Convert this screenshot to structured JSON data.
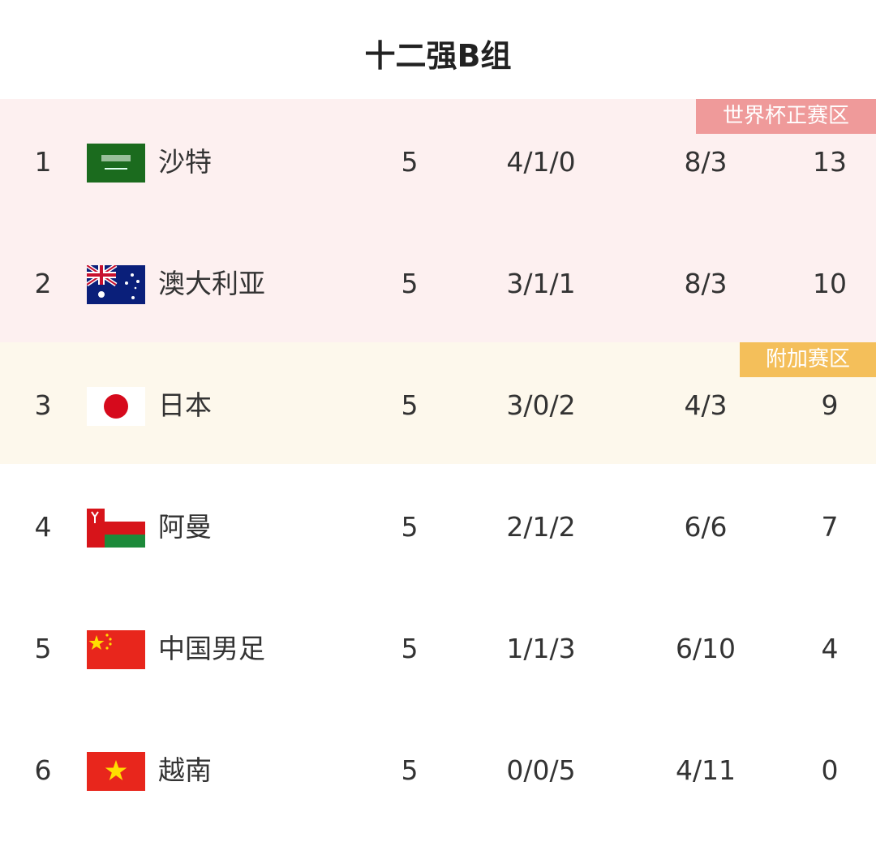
{
  "title": "十二强B组",
  "zones": [
    {
      "label": "世界杯正赛区",
      "badge_color": "#ef9a9a",
      "bg_color": "#fdf0f0"
    },
    {
      "label": "附加赛区",
      "badge_color": "#f4bf5a",
      "bg_color": "#fdf8ec"
    }
  ],
  "rows": [
    {
      "rank": "1",
      "team": "沙特",
      "flag": "saudi-arabia-flag",
      "played": "5",
      "wdl": "4/1/0",
      "goals": "8/3",
      "points": "13"
    },
    {
      "rank": "2",
      "team": "澳大利亚",
      "flag": "australia-flag",
      "played": "5",
      "wdl": "3/1/1",
      "goals": "8/3",
      "points": "10"
    },
    {
      "rank": "3",
      "team": "日本",
      "flag": "japan-flag",
      "played": "5",
      "wdl": "3/0/2",
      "goals": "4/3",
      "points": "9"
    },
    {
      "rank": "4",
      "team": "阿曼",
      "flag": "oman-flag",
      "played": "5",
      "wdl": "2/1/2",
      "goals": "6/6",
      "points": "7"
    },
    {
      "rank": "5",
      "team": "中国男足",
      "flag": "china-flag",
      "played": "5",
      "wdl": "1/1/3",
      "goals": "6/10",
      "points": "4"
    },
    {
      "rank": "6",
      "team": "越南",
      "flag": "vietnam-flag",
      "played": "5",
      "wdl": "0/0/5",
      "goals": "4/11",
      "points": "0"
    }
  ]
}
